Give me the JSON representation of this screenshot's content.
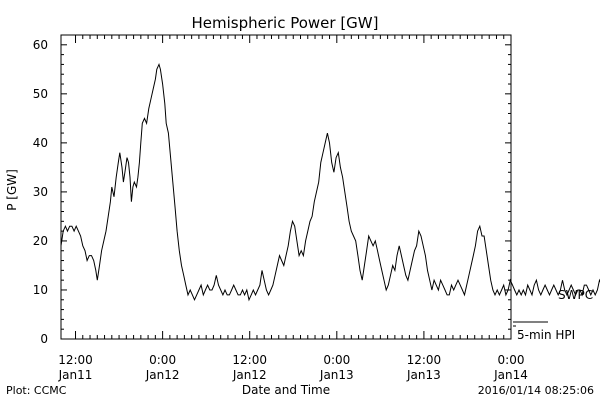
{
  "chart_data": {
    "type": "line",
    "title": "Hemispheric Power [GW]",
    "xlabel": "Date and Time",
    "ylabel": "P [GW]",
    "ylim": [
      0,
      62
    ],
    "yticks": [
      0,
      10,
      20,
      30,
      40,
      50,
      60
    ],
    "xlim_hours": [
      -14,
      48
    ],
    "xticks": [
      {
        "hour": -12,
        "time": "12:00",
        "date": "Jan11"
      },
      {
        "hour": 0,
        "time": "0:00",
        "date": "Jan12"
      },
      {
        "hour": 12,
        "time": "12:00",
        "date": "Jan12"
      },
      {
        "hour": 24,
        "time": "0:00",
        "date": "Jan13"
      },
      {
        "hour": 36,
        "time": "12:00",
        "date": "Jan13"
      },
      {
        "hour": 48,
        "time": "0:00",
        "date": "Jan14"
      }
    ],
    "grid": false,
    "legend": {
      "position": "right",
      "entries": [
        "SWPC",
        "5-min HPI"
      ]
    },
    "series": [
      {
        "name": "SWPC",
        "points": [
          [
            -14.0,
            19
          ],
          [
            -13.7,
            22
          ],
          [
            -13.4,
            23
          ],
          [
            -13.1,
            22
          ],
          [
            -12.8,
            23
          ],
          [
            -12.5,
            23
          ],
          [
            -12.2,
            22
          ],
          [
            -11.9,
            23
          ],
          [
            -11.6,
            22
          ],
          [
            -11.3,
            21
          ],
          [
            -11.0,
            19
          ],
          [
            -10.7,
            18
          ],
          [
            -10.4,
            16
          ],
          [
            -10.1,
            17
          ],
          [
            -9.8,
            17
          ],
          [
            -9.5,
            16
          ],
          [
            -9.2,
            14
          ],
          [
            -9.0,
            12
          ],
          [
            -8.7,
            15
          ],
          [
            -8.4,
            18
          ],
          [
            -8.1,
            20
          ],
          [
            -7.8,
            22
          ],
          [
            -7.5,
            25
          ],
          [
            -7.2,
            28
          ],
          [
            -7.0,
            31
          ],
          [
            -6.7,
            29
          ],
          [
            -6.4,
            33
          ],
          [
            -6.1,
            36
          ],
          [
            -5.9,
            38
          ],
          [
            -5.6,
            35
          ],
          [
            -5.4,
            32
          ],
          [
            -5.2,
            34
          ],
          [
            -4.9,
            37
          ],
          [
            -4.7,
            36
          ],
          [
            -4.5,
            33
          ],
          [
            -4.3,
            28
          ],
          [
            -4.1,
            31
          ],
          [
            -3.9,
            32
          ],
          [
            -3.6,
            31
          ],
          [
            -3.4,
            33
          ],
          [
            -3.2,
            36
          ],
          [
            -3.0,
            40
          ],
          [
            -2.8,
            44
          ],
          [
            -2.5,
            45
          ],
          [
            -2.2,
            44
          ],
          [
            -1.9,
            47
          ],
          [
            -1.6,
            49
          ],
          [
            -1.3,
            51
          ],
          [
            -1.0,
            53
          ],
          [
            -0.8,
            55
          ],
          [
            -0.5,
            56
          ],
          [
            -0.3,
            55
          ],
          [
            0.0,
            52
          ],
          [
            0.3,
            48
          ],
          [
            0.5,
            44
          ],
          [
            0.8,
            42
          ],
          [
            1.1,
            37
          ],
          [
            1.4,
            32
          ],
          [
            1.7,
            27
          ],
          [
            2.0,
            22
          ],
          [
            2.3,
            18
          ],
          [
            2.6,
            15
          ],
          [
            2.9,
            13
          ],
          [
            3.2,
            11
          ],
          [
            3.5,
            9
          ],
          [
            3.8,
            10
          ],
          [
            4.1,
            9
          ],
          [
            4.4,
            8
          ],
          [
            4.7,
            9
          ],
          [
            5.0,
            10
          ],
          [
            5.3,
            11
          ],
          [
            5.6,
            9
          ],
          [
            5.9,
            10
          ],
          [
            6.2,
            11
          ],
          [
            6.5,
            10
          ],
          [
            6.8,
            10
          ],
          [
            7.1,
            11
          ],
          [
            7.4,
            13
          ],
          [
            7.7,
            11
          ],
          [
            8.0,
            10
          ],
          [
            8.3,
            9
          ],
          [
            8.6,
            10
          ],
          [
            8.9,
            9
          ],
          [
            9.2,
            9
          ],
          [
            9.5,
            10
          ],
          [
            9.8,
            11
          ],
          [
            10.1,
            10
          ],
          [
            10.4,
            9
          ],
          [
            10.7,
            9
          ],
          [
            11.0,
            10
          ],
          [
            11.3,
            9
          ],
          [
            11.6,
            10
          ],
          [
            11.9,
            8
          ],
          [
            12.2,
            9
          ],
          [
            12.5,
            10
          ],
          [
            12.8,
            9
          ],
          [
            13.1,
            10
          ],
          [
            13.4,
            11
          ],
          [
            13.7,
            14
          ],
          [
            14.0,
            12
          ],
          [
            14.3,
            10
          ],
          [
            14.6,
            9
          ],
          [
            14.9,
            10
          ],
          [
            15.2,
            11
          ],
          [
            15.5,
            13
          ],
          [
            15.8,
            15
          ],
          [
            16.1,
            17
          ],
          [
            16.4,
            16
          ],
          [
            16.7,
            15
          ],
          [
            17.0,
            17
          ],
          [
            17.3,
            19
          ],
          [
            17.6,
            22
          ],
          [
            17.9,
            24
          ],
          [
            18.2,
            23
          ],
          [
            18.5,
            20
          ],
          [
            18.8,
            17
          ],
          [
            19.1,
            18
          ],
          [
            19.4,
            17
          ],
          [
            19.7,
            20
          ],
          [
            20.0,
            22
          ],
          [
            20.3,
            24
          ],
          [
            20.6,
            25
          ],
          [
            20.9,
            28
          ],
          [
            21.2,
            30
          ],
          [
            21.5,
            32
          ],
          [
            21.8,
            36
          ],
          [
            22.1,
            38
          ],
          [
            22.4,
            40
          ],
          [
            22.7,
            42
          ],
          [
            23.0,
            40
          ],
          [
            23.3,
            36
          ],
          [
            23.6,
            34
          ],
          [
            23.9,
            37
          ],
          [
            24.2,
            38
          ],
          [
            24.5,
            35
          ],
          [
            24.8,
            33
          ],
          [
            25.1,
            30
          ],
          [
            25.4,
            27
          ],
          [
            25.7,
            24
          ],
          [
            26.0,
            22
          ],
          [
            26.3,
            21
          ],
          [
            26.6,
            20
          ],
          [
            26.9,
            17
          ],
          [
            27.2,
            14
          ],
          [
            27.5,
            12
          ],
          [
            27.8,
            15
          ],
          [
            28.1,
            18
          ],
          [
            28.4,
            21
          ],
          [
            28.7,
            20
          ],
          [
            29.0,
            19
          ],
          [
            29.3,
            20
          ],
          [
            29.6,
            18
          ],
          [
            29.9,
            16
          ],
          [
            30.2,
            14
          ],
          [
            30.5,
            12
          ],
          [
            30.8,
            10
          ],
          [
            31.1,
            11
          ],
          [
            31.4,
            13
          ],
          [
            31.7,
            15
          ],
          [
            32.0,
            14
          ],
          [
            32.3,
            17
          ],
          [
            32.6,
            19
          ],
          [
            32.9,
            17
          ],
          [
            33.2,
            15
          ],
          [
            33.5,
            13
          ],
          [
            33.8,
            12
          ],
          [
            34.1,
            14
          ],
          [
            34.4,
            16
          ],
          [
            34.7,
            18
          ],
          [
            35.0,
            19
          ],
          [
            35.3,
            22
          ],
          [
            35.6,
            21
          ],
          [
            35.9,
            19
          ],
          [
            36.2,
            17
          ],
          [
            36.5,
            14
          ],
          [
            36.8,
            12
          ],
          [
            37.1,
            10
          ],
          [
            37.4,
            12
          ],
          [
            37.7,
            11
          ],
          [
            38.0,
            10
          ],
          [
            38.3,
            12
          ],
          [
            38.6,
            11
          ],
          [
            38.9,
            10
          ],
          [
            39.2,
            9
          ],
          [
            39.5,
            9
          ],
          [
            39.8,
            11
          ],
          [
            40.1,
            10
          ],
          [
            40.4,
            11
          ],
          [
            40.7,
            12
          ],
          [
            41.0,
            11
          ],
          [
            41.3,
            10
          ],
          [
            41.6,
            9
          ],
          [
            41.9,
            11
          ],
          [
            42.2,
            13
          ],
          [
            42.5,
            15
          ],
          [
            42.8,
            17
          ],
          [
            43.1,
            19
          ],
          [
            43.4,
            22
          ],
          [
            43.7,
            23
          ],
          [
            44.0,
            21
          ],
          [
            44.3,
            21
          ],
          [
            44.6,
            18
          ],
          [
            44.9,
            15
          ],
          [
            45.2,
            12
          ],
          [
            45.5,
            10
          ],
          [
            45.8,
            9
          ],
          [
            46.1,
            10
          ],
          [
            46.4,
            9
          ],
          [
            46.7,
            10
          ],
          [
            47.0,
            11
          ],
          [
            47.3,
            9
          ],
          [
            47.6,
            10
          ],
          [
            47.9,
            12
          ],
          [
            48.2,
            11
          ],
          [
            48.5,
            10
          ],
          [
            48.8,
            9
          ],
          [
            49.1,
            10
          ],
          [
            49.4,
            9
          ],
          [
            49.7,
            10
          ],
          [
            50.0,
            9
          ],
          [
            50.3,
            11
          ],
          [
            50.6,
            10
          ],
          [
            50.9,
            9
          ],
          [
            51.2,
            11
          ],
          [
            51.5,
            12
          ],
          [
            51.8,
            10
          ],
          [
            52.1,
            9
          ],
          [
            52.4,
            10
          ],
          [
            52.7,
            11
          ],
          [
            53.0,
            10
          ],
          [
            53.3,
            9
          ],
          [
            53.6,
            10
          ],
          [
            53.9,
            11
          ],
          [
            54.2,
            10
          ],
          [
            54.5,
            9
          ],
          [
            54.8,
            10
          ],
          [
            55.1,
            12
          ],
          [
            55.4,
            10
          ],
          [
            55.7,
            9
          ],
          [
            56.0,
            10
          ],
          [
            56.3,
            11
          ],
          [
            56.6,
            10
          ],
          [
            56.9,
            9
          ],
          [
            57.2,
            10
          ],
          [
            57.5,
            10
          ],
          [
            57.8,
            9
          ],
          [
            58.1,
            11
          ],
          [
            58.4,
            11
          ],
          [
            58.7,
            10
          ],
          [
            59.0,
            9
          ],
          [
            59.3,
            10
          ],
          [
            59.6,
            9
          ],
          [
            59.9,
            10
          ],
          [
            60.2,
            12
          ],
          [
            60.5,
            11
          ],
          [
            60.8,
            10
          ],
          [
            61.1,
            12
          ],
          [
            61.4,
            11
          ],
          [
            61.7,
            13
          ],
          [
            62.0,
            15
          ]
        ]
      }
    ]
  },
  "footer": {
    "plot_credit": "Plot: CCMC",
    "timestamp": "2016/01/14 08:25:06"
  }
}
